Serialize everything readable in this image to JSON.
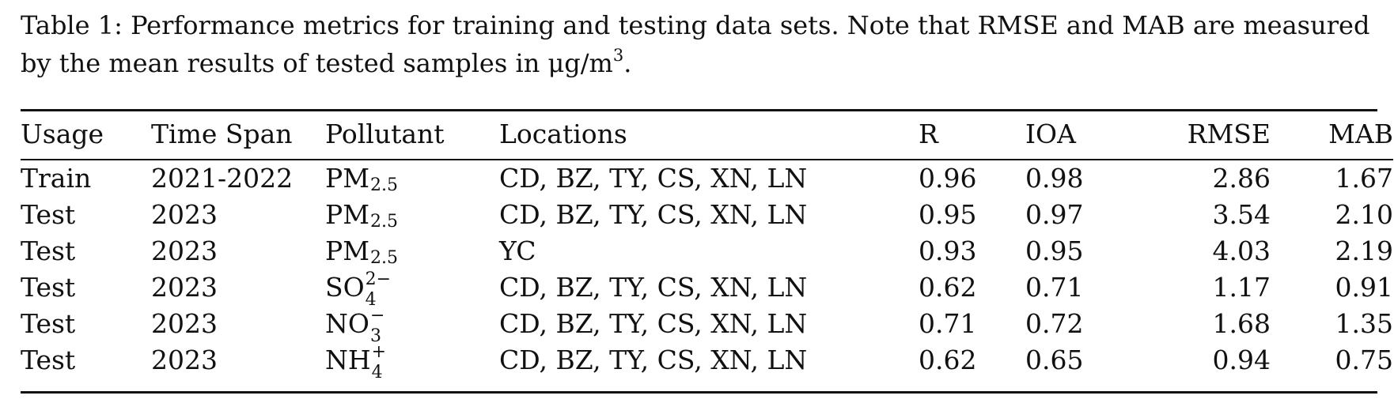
{
  "caption": {
    "text": "Table 1: Performance metrics for training and testing data sets. Note that RMSE and MAB are measured by the mean results of tested samples in μg/m",
    "superscript": "3",
    "end": "."
  },
  "table": {
    "headers": [
      "Usage",
      "Time Span",
      "Pollutant",
      "Locations",
      "R",
      "IOA",
      "RMSE",
      "MAB"
    ],
    "rows": [
      {
        "usage": "Train",
        "time_span": "2021-2022",
        "pollutant_base": "PM",
        "pollutant_sub": "2.5",
        "pollutant_sup": "",
        "locations": "CD, BZ, TY, CS, XN, LN",
        "r": "0.96",
        "ioa": "0.98",
        "rmse": "2.86",
        "mab": "1.67"
      },
      {
        "usage": "Test",
        "time_span": "2023",
        "pollutant_base": "PM",
        "pollutant_sub": "2.5",
        "pollutant_sup": "",
        "locations": "CD, BZ, TY, CS, XN, LN",
        "r": "0.95",
        "ioa": "0.97",
        "rmse": "3.54",
        "mab": "2.10"
      },
      {
        "usage": "Test",
        "time_span": "2023",
        "pollutant_base": "PM",
        "pollutant_sub": "2.5",
        "pollutant_sup": "",
        "locations": "YC",
        "r": "0.93",
        "ioa": "0.95",
        "rmse": "4.03",
        "mab": "2.19"
      },
      {
        "usage": "Test",
        "time_span": "2023",
        "pollutant_base": "SO",
        "pollutant_sub": "4",
        "pollutant_sup": "2−",
        "locations": "CD, BZ, TY, CS, XN, LN",
        "r": "0.62",
        "ioa": "0.71",
        "rmse": "1.17",
        "mab": "0.91"
      },
      {
        "usage": "Test",
        "time_span": "2023",
        "pollutant_base": "NO",
        "pollutant_sub": "3",
        "pollutant_sup": "−",
        "locations": "CD, BZ, TY, CS, XN, LN",
        "r": "0.71",
        "ioa": "0.72",
        "rmse": "1.68",
        "mab": "1.35"
      },
      {
        "usage": "Test",
        "time_span": "2023",
        "pollutant_base": "NH",
        "pollutant_sub": "4",
        "pollutant_sup": "+",
        "locations": "CD, BZ, TY, CS, XN, LN",
        "r": "0.62",
        "ioa": "0.65",
        "rmse": "0.94",
        "mab": "0.75"
      }
    ]
  }
}
